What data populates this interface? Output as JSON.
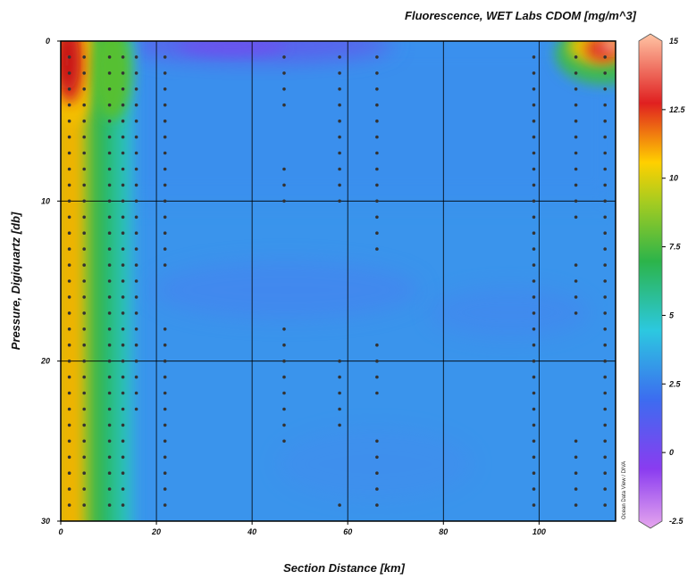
{
  "chart_data": {
    "type": "heatmap",
    "title": "Fluorescence, WET Labs CDOM [mg/m^3]",
    "xlabel": "Section Distance [km]",
    "ylabel": "Pressure, Digiquartz [db]",
    "xlim": [
      0,
      116
    ],
    "ylim": [
      0,
      30
    ],
    "y_inverted": true,
    "x_ticks": [
      "0",
      "20",
      "40",
      "60",
      "80",
      "100"
    ],
    "y_ticks": [
      "0",
      "10",
      "20",
      "30"
    ],
    "grid": true,
    "colorbar": {
      "min": -2.5,
      "max": 15,
      "ticks": [
        "15",
        "12.5",
        "10",
        "7.5",
        "5",
        "2.5",
        "0",
        "-2.5"
      ],
      "colormap": [
        "#e6a6ee",
        "#8a3cf0",
        "#3c6cf0",
        "#2cc8e0",
        "#2cb44a",
        "#a6cc20",
        "#ffd000",
        "#e02020",
        "#ffc4a4"
      ]
    },
    "credit": "Ocean Data View / DIVA",
    "stations": [
      {
        "x": 1.8,
        "depths": [
          1,
          2,
          3,
          4,
          5,
          6,
          7,
          8,
          9,
          10,
          11,
          12,
          13,
          14,
          15,
          16,
          17,
          18,
          19,
          20,
          21,
          22,
          23,
          24,
          25,
          26,
          27,
          28,
          29
        ]
      },
      {
        "x": 4.9,
        "depths": [
          1,
          2,
          3,
          4,
          5,
          6,
          7,
          8,
          9,
          10,
          11,
          12,
          13,
          14,
          15,
          16,
          17,
          18,
          19,
          20,
          21,
          22,
          23,
          24,
          25,
          26,
          27,
          28,
          29
        ]
      },
      {
        "x": 10.2,
        "depths": [
          1,
          2,
          3,
          4,
          5,
          6,
          7,
          8,
          9,
          10,
          11,
          12,
          13,
          14,
          15,
          16,
          17,
          18,
          19,
          20,
          21,
          22,
          23,
          24,
          25,
          26,
          27,
          28,
          29
        ]
      },
      {
        "x": 13.0,
        "depths": [
          1,
          2,
          3,
          4,
          5,
          6,
          7,
          8,
          9,
          10,
          11,
          12,
          13,
          14,
          15,
          16,
          17,
          18,
          19,
          20,
          21,
          22,
          23,
          24,
          25,
          26,
          27,
          28,
          29
        ]
      },
      {
        "x": 15.8,
        "depths": [
          1,
          2,
          3,
          4,
          5,
          6,
          7,
          8,
          9,
          10,
          11,
          12,
          13,
          14,
          15,
          16,
          17,
          18,
          19,
          20,
          21,
          22,
          23
        ]
      },
      {
        "x": 21.8,
        "depths": [
          1,
          2,
          3,
          4,
          5,
          6,
          7,
          8,
          9,
          10,
          11,
          12,
          13,
          14,
          18,
          19,
          20,
          21,
          22,
          23,
          24,
          25,
          26,
          27,
          28,
          29
        ]
      },
      {
        "x": 46.7,
        "depths": [
          1,
          2,
          3,
          4,
          8,
          9,
          10,
          18,
          19,
          20,
          21,
          22,
          23,
          24,
          25
        ]
      },
      {
        "x": 58.3,
        "depths": [
          1,
          2,
          3,
          4,
          5,
          6,
          7,
          8,
          9,
          10,
          20,
          21,
          22,
          23,
          24,
          29
        ]
      },
      {
        "x": 66.1,
        "depths": [
          1,
          2,
          3,
          4,
          5,
          6,
          7,
          8,
          9,
          10,
          11,
          12,
          13,
          19,
          20,
          21,
          22,
          25,
          26,
          27,
          28,
          29
        ]
      },
      {
        "x": 98.9,
        "depths": [
          1,
          2,
          3,
          4,
          5,
          6,
          7,
          8,
          9,
          10,
          11,
          12,
          13,
          14,
          15,
          16,
          17,
          18,
          19,
          20,
          21,
          22,
          23,
          24,
          25,
          26,
          27,
          28,
          29
        ]
      },
      {
        "x": 107.7,
        "depths": [
          1,
          2,
          3,
          4,
          5,
          6,
          7,
          8,
          9,
          10,
          11,
          14,
          15,
          16,
          17,
          25,
          26,
          27,
          28,
          29
        ]
      },
      {
        "x": 113.8,
        "depths": [
          1,
          2,
          3,
          4,
          5,
          6,
          7,
          8,
          9,
          10,
          11,
          12,
          13,
          14,
          15,
          16,
          17,
          18,
          19,
          20,
          21,
          22,
          23,
          24,
          25,
          26,
          27,
          28,
          29
        ]
      }
    ]
  }
}
